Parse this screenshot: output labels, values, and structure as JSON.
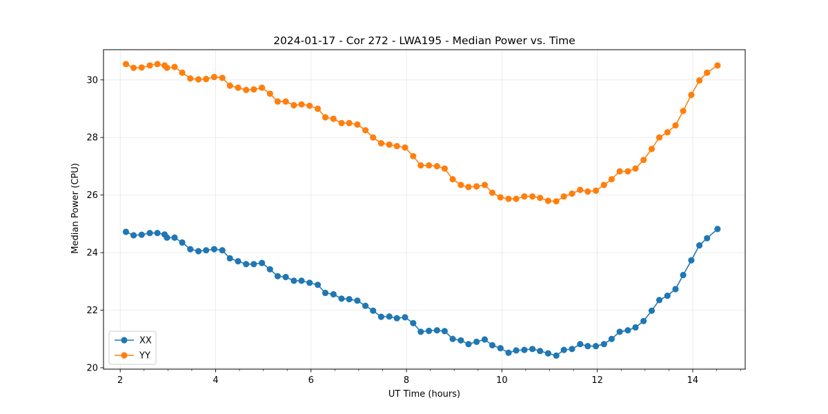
{
  "chart_data": {
    "type": "line",
    "title": "2024-01-17 - Cor 272 - LWA195 - Median Power vs. Time",
    "xlabel": "UT Time (hours)",
    "ylabel": "Median Power (CPU)",
    "xlim": [
      1.65,
      15.1
    ],
    "ylim": [
      19.95,
      31.05
    ],
    "xticks": [
      2,
      4,
      6,
      8,
      10,
      12,
      14
    ],
    "yticks": [
      20,
      22,
      24,
      26,
      28,
      30
    ],
    "grid": true,
    "legend_position": "lower-left",
    "x": [
      2.12,
      2.28,
      2.45,
      2.62,
      2.78,
      2.93,
      2.98,
      3.14,
      3.3,
      3.47,
      3.64,
      3.8,
      3.97,
      4.14,
      4.3,
      4.47,
      4.64,
      4.8,
      4.97,
      5.14,
      5.3,
      5.47,
      5.64,
      5.8,
      5.97,
      6.14,
      6.3,
      6.47,
      6.64,
      6.8,
      6.97,
      7.14,
      7.3,
      7.47,
      7.64,
      7.8,
      7.97,
      8.14,
      8.3,
      8.47,
      8.64,
      8.8,
      8.97,
      9.14,
      9.3,
      9.47,
      9.64,
      9.8,
      9.97,
      10.14,
      10.3,
      10.47,
      10.64,
      10.8,
      10.97,
      11.14,
      11.3,
      11.47,
      11.64,
      11.8,
      11.97,
      12.14,
      12.3,
      12.47,
      12.64,
      12.8,
      12.97,
      13.14,
      13.3,
      13.47,
      13.64,
      13.8,
      13.97,
      14.14,
      14.3,
      14.52
    ],
    "series": [
      {
        "name": "XX",
        "color": "#1f77b4",
        "values": [
          24.72,
          24.6,
          24.62,
          24.68,
          24.68,
          24.63,
          24.52,
          24.52,
          24.35,
          24.12,
          24.05,
          24.08,
          24.12,
          24.08,
          23.8,
          23.7,
          23.6,
          23.6,
          23.64,
          23.42,
          23.18,
          23.15,
          23.02,
          23.02,
          22.95,
          22.88,
          22.6,
          22.55,
          22.4,
          22.38,
          22.33,
          22.15,
          21.98,
          21.77,
          21.78,
          21.72,
          21.75,
          21.55,
          21.25,
          21.28,
          21.3,
          21.27,
          21.0,
          20.95,
          20.82,
          20.9,
          20.98,
          20.78,
          20.68,
          20.52,
          20.6,
          20.62,
          20.65,
          20.58,
          20.5,
          20.42,
          20.62,
          20.65,
          20.82,
          20.75,
          20.75,
          20.82,
          21.0,
          21.25,
          21.3,
          21.4,
          21.62,
          21.98,
          22.35,
          22.5,
          22.73,
          23.22,
          23.73,
          24.25,
          24.5,
          24.82
        ]
      },
      {
        "name": "YY",
        "color": "#ff7f0e",
        "values": [
          30.55,
          30.42,
          30.43,
          30.5,
          30.55,
          30.5,
          30.42,
          30.45,
          30.25,
          30.05,
          30.02,
          30.03,
          30.1,
          30.07,
          29.8,
          29.73,
          29.65,
          29.67,
          29.73,
          29.52,
          29.25,
          29.25,
          29.12,
          29.15,
          29.1,
          29.0,
          28.7,
          28.65,
          28.5,
          28.5,
          28.45,
          28.25,
          28.0,
          27.8,
          27.75,
          27.7,
          27.65,
          27.35,
          27.03,
          27.03,
          27.0,
          26.92,
          26.55,
          26.35,
          26.28,
          26.3,
          26.35,
          26.08,
          25.92,
          25.87,
          25.87,
          25.95,
          25.95,
          25.9,
          25.8,
          25.78,
          25.95,
          26.05,
          26.18,
          26.12,
          26.15,
          26.35,
          26.55,
          26.82,
          26.82,
          26.92,
          27.22,
          27.6,
          28.0,
          28.18,
          28.42,
          28.92,
          29.48,
          29.98,
          30.25,
          30.5
        ]
      }
    ]
  }
}
